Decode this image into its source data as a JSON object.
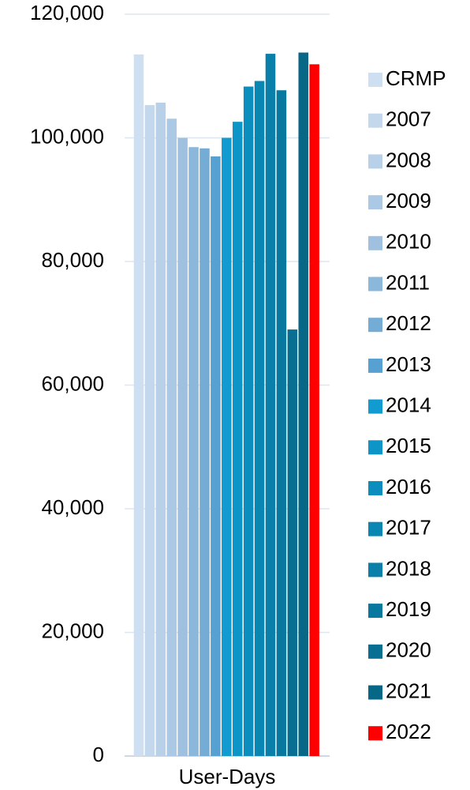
{
  "chart_data": {
    "type": "bar",
    "categories": [
      "User-Days"
    ],
    "series": [
      {
        "name": "CRMP",
        "color": "#cddff0",
        "values": [
          113500
        ]
      },
      {
        "name": "2007",
        "color": "#c3d8ec",
        "values": [
          105300
        ]
      },
      {
        "name": "2008",
        "color": "#b8d1e8",
        "values": [
          105700
        ]
      },
      {
        "name": "2009",
        "color": "#abc9e4",
        "values": [
          103100
        ]
      },
      {
        "name": "2010",
        "color": "#9fc1df",
        "values": [
          100000
        ]
      },
      {
        "name": "2011",
        "color": "#8bb7db",
        "values": [
          98500
        ]
      },
      {
        "name": "2012",
        "color": "#74acd6",
        "values": [
          98300
        ]
      },
      {
        "name": "2013",
        "color": "#56a1d2",
        "values": [
          97000
        ]
      },
      {
        "name": "2014",
        "color": "#129bd0",
        "values": [
          100000
        ]
      },
      {
        "name": "2015",
        "color": "#0e95c8",
        "values": [
          102600
        ]
      },
      {
        "name": "2016",
        "color": "#0b8dbe",
        "values": [
          108300
        ]
      },
      {
        "name": "2017",
        "color": "#0a86b3",
        "values": [
          109200
        ]
      },
      {
        "name": "2018",
        "color": "#0a7fa9",
        "values": [
          113600
        ]
      },
      {
        "name": "2019",
        "color": "#09789f",
        "values": [
          107700
        ]
      },
      {
        "name": "2020",
        "color": "#086f93",
        "values": [
          69000
        ]
      },
      {
        "name": "2021",
        "color": "#076787",
        "values": [
          113800
        ]
      },
      {
        "name": "2022",
        "color": "#ff0000",
        "values": [
          111900
        ]
      }
    ],
    "ylim": [
      0,
      120000
    ],
    "yticks": [
      0,
      {
        "value": 20000,
        "label": "20,000"
      },
      {
        "value": 40000,
        "label": "40,000"
      },
      {
        "value": 60000,
        "label": "60,000"
      },
      {
        "value": 80000,
        "label": "80,000"
      },
      {
        "value": 100000,
        "label": "100,000"
      },
      {
        "value": 120000,
        "label": "120,000"
      }
    ],
    "grid": true,
    "legend": "right"
  }
}
